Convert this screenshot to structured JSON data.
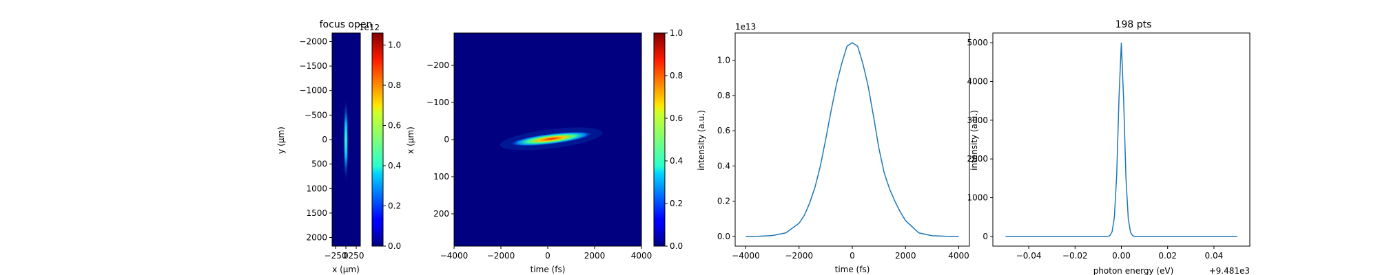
{
  "colors": {
    "line": "#1f77b4",
    "background": "#000080"
  },
  "chart_data": [
    {
      "type": "heatmap",
      "title": "focus open",
      "xlabel": "x (μm)",
      "ylabel": "y (μm)",
      "x_ticks": [
        "−250",
        "0",
        "250"
      ],
      "y_ticks": [
        "−2000",
        "−1500",
        "−1000",
        "−500",
        "0",
        "500",
        "1000",
        "1500",
        "2000"
      ],
      "y_tick_values": [
        -2000,
        -1500,
        -1000,
        -500,
        0,
        500,
        1000,
        1500,
        2000
      ],
      "ylim": [
        2175,
        -2175
      ],
      "colorbar": {
        "colormap": "jet",
        "offset_label": "1e12",
        "ticks": [
          "0.0",
          "0.2",
          "0.4",
          "0.6",
          "0.8",
          "1.0"
        ],
        "tick_values": [
          0,
          0.2,
          0.4,
          0.6,
          0.8,
          1.0
        ],
        "range": [
          0,
          1.06
        ]
      }
    },
    {
      "type": "heatmap",
      "xlabel": "time (fs)",
      "ylabel": "x (μm)",
      "x_ticks": [
        "−4000",
        "−2000",
        "0",
        "2000",
        "4000"
      ],
      "x_tick_values": [
        -4000,
        -2000,
        0,
        2000,
        4000
      ],
      "xlim": [
        -4000,
        4000
      ],
      "y_ticks": [
        "−200",
        "−100",
        "0",
        "100",
        "200"
      ],
      "y_tick_values": [
        -200,
        -100,
        0,
        100,
        200
      ],
      "ylim": [
        287,
        -287
      ],
      "colorbar": {
        "colormap": "jet",
        "ticks": [
          "0.0",
          "0.2",
          "0.4",
          "0.6",
          "0.8",
          "1.0"
        ],
        "tick_values": [
          0,
          0.2,
          0.4,
          0.6,
          0.8,
          1.0
        ],
        "range": [
          0,
          1.0
        ]
      }
    },
    {
      "type": "line",
      "xlabel": "time (fs)",
      "ylabel": "intensity (a.u.)",
      "offset_label": "1e13",
      "x_ticks": [
        "−4000",
        "−2000",
        "0",
        "2000",
        "4000"
      ],
      "x_tick_values": [
        -4000,
        -2000,
        0,
        2000,
        4000
      ],
      "xlim": [
        -4400,
        4400
      ],
      "y_ticks": [
        "0.0",
        "0.2",
        "0.4",
        "0.6",
        "0.8",
        "1.0"
      ],
      "y_tick_values": [
        0,
        0.2,
        0.4,
        0.6,
        0.8,
        1.0
      ],
      "ylim": [
        -0.055,
        1.155
      ],
      "series": [
        {
          "x": [
            -4000,
            -3500,
            -3000,
            -2500,
            -2000,
            -1800,
            -1600,
            -1400,
            -1200,
            -1000,
            -800,
            -600,
            -400,
            -200,
            0,
            200,
            400,
            600,
            800,
            1000,
            1200,
            1400,
            1600,
            1800,
            2000,
            2500,
            3000,
            3500,
            4000
          ],
          "values": [
            0,
            0.001,
            0.005,
            0.02,
            0.075,
            0.12,
            0.19,
            0.28,
            0.4,
            0.55,
            0.71,
            0.86,
            0.98,
            1.08,
            1.1,
            1.08,
            0.98,
            0.85,
            0.68,
            0.5,
            0.36,
            0.27,
            0.2,
            0.14,
            0.09,
            0.02,
            0.004,
            0.001,
            0
          ]
        }
      ]
    },
    {
      "type": "line",
      "title": "198 pts",
      "xlabel": "photon energy (eV)",
      "ylabel": "intensity (a.u.)",
      "offset_label": "+9.481e3",
      "x_ticks": [
        "−0.04",
        "−0.02",
        "0.00",
        "0.02",
        "0.04"
      ],
      "x_tick_values": [
        -0.04,
        -0.02,
        0,
        0.02,
        0.04
      ],
      "xlim": [
        -0.0555,
        0.0555
      ],
      "y_ticks": [
        "0",
        "1000",
        "2000",
        "3000",
        "4000",
        "5000"
      ],
      "y_tick_values": [
        0,
        1000,
        2000,
        3000,
        4000,
        5000
      ],
      "ylim": [
        -250,
        5250
      ],
      "series": [
        {
          "x": [
            -0.05,
            -0.01,
            -0.006,
            -0.005,
            -0.004,
            -0.003,
            -0.002,
            -0.001,
            0,
            0.001,
            0.002,
            0.003,
            0.004,
            0.005,
            0.006,
            0.01,
            0.05
          ],
          "values": [
            0,
            0,
            0,
            20,
            120,
            500,
            1600,
            3600,
            5000,
            3500,
            1500,
            450,
            100,
            15,
            0,
            0,
            0
          ]
        }
      ]
    }
  ]
}
